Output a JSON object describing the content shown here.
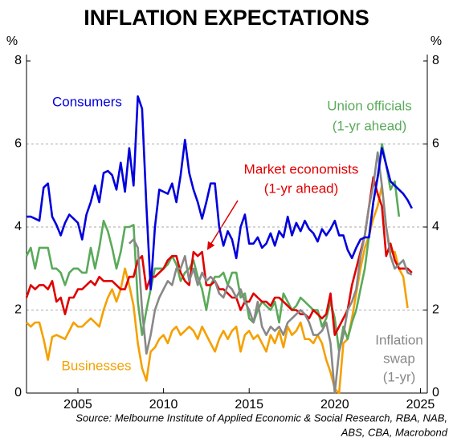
{
  "chart_data": {
    "type": "line",
    "title": "INFLATION EXPECTATIONS",
    "y_unit": "%",
    "y2_unit": "%",
    "source": [
      "Source: Melbourne Institute of Applied Economic & Social Research, RBA, NAB,",
      "ABS, CBA, Macrobond"
    ],
    "xlim": [
      2002,
      2025.4
    ],
    "xticks": [
      2005,
      2010,
      2015,
      2020,
      2025
    ],
    "ylim": [
      0,
      8
    ],
    "yticks": [
      0,
      2,
      4,
      6,
      8
    ],
    "y2lim": [
      0,
      8
    ],
    "y2ticks": [
      0,
      2,
      4,
      6,
      8
    ],
    "grid": true,
    "x": [
      2002,
      2002.25,
      2002.5,
      2002.75,
      2003,
      2003.25,
      2003.5,
      2003.75,
      2004,
      2004.25,
      2004.5,
      2004.75,
      2005,
      2005.25,
      2005.5,
      2005.75,
      2006,
      2006.25,
      2006.5,
      2006.75,
      2007,
      2007.25,
      2007.5,
      2007.75,
      2008,
      2008.25,
      2008.5,
      2008.75,
      2009,
      2009.25,
      2009.5,
      2009.75,
      2010,
      2010.25,
      2010.5,
      2010.75,
      2011,
      2011.25,
      2011.5,
      2011.75,
      2012,
      2012.25,
      2012.5,
      2012.75,
      2013,
      2013.25,
      2013.5,
      2013.75,
      2014,
      2014.25,
      2014.5,
      2014.75,
      2015,
      2015.25,
      2015.5,
      2015.75,
      2016,
      2016.25,
      2016.5,
      2016.75,
      2017,
      2017.25,
      2017.5,
      2017.75,
      2018,
      2018.25,
      2018.5,
      2018.75,
      2019,
      2019.25,
      2019.5,
      2019.75,
      2020,
      2020.25,
      2020.5,
      2020.75,
      2021,
      2021.25,
      2021.5,
      2021.75,
      2022,
      2022.25,
      2022.5,
      2022.75,
      2023,
      2023.25,
      2023.5,
      2023.75,
      2024,
      2024.25,
      2024.5
    ],
    "series": [
      {
        "name": [
          "Businesses"
        ],
        "color": "#f5a000",
        "values": [
          1.7,
          1.6,
          1.7,
          1.7,
          1.3,
          0.8,
          1.35,
          1.4,
          1.35,
          1.3,
          1.5,
          1.7,
          1.6,
          1.6,
          1.7,
          1.8,
          1.7,
          1.6,
          2.0,
          2.3,
          2.5,
          2.2,
          2.5,
          3.0,
          2.6,
          2.1,
          1.2,
          0.6,
          0.3,
          1.0,
          1.1,
          1.3,
          1.4,
          1.2,
          1.5,
          1.6,
          1.4,
          1.5,
          1.6,
          1.5,
          1.3,
          1.6,
          1.4,
          1.2,
          1.0,
          1.3,
          1.5,
          1.3,
          1.5,
          1.6,
          1.0,
          1.4,
          1.5,
          1.3,
          1.4,
          1.2,
          1.0,
          1.4,
          1.2,
          1.5,
          1.1,
          1.6,
          1.4,
          1.5,
          1.7,
          1.3,
          1.3,
          1.2,
          1.4,
          1.2,
          0.8,
          0.5,
          0.1,
          0.0,
          1.2,
          1.3,
          1.8,
          2.4,
          3.0,
          3.5,
          3.8,
          4.2,
          4.5,
          5.0,
          4.0,
          3.4,
          3.4,
          3.0,
          2.8,
          2.05,
          null
        ]
      },
      {
        "name": [
          "Union officials",
          "(1-yr ahead)"
        ],
        "color": "#5aaa5a",
        "values": [
          3.3,
          3.5,
          3.0,
          3.5,
          3.5,
          3.5,
          3.0,
          3.0,
          2.9,
          2.6,
          2.9,
          3.0,
          3.0,
          2.9,
          2.9,
          3.5,
          3.0,
          3.5,
          4.15,
          3.9,
          3.5,
          3.0,
          3.4,
          4.0,
          4.0,
          4.05,
          2.2,
          1.4,
          2.0,
          2.5,
          3.0,
          3.0,
          3.0,
          3.1,
          3.3,
          3.1,
          2.7,
          2.9,
          3.0,
          3.2,
          2.8,
          2.5,
          2.0,
          2.6,
          2.8,
          2.8,
          2.9,
          2.6,
          2.9,
          2.9,
          2.3,
          2.4,
          1.8,
          1.7,
          2.0,
          2.2,
          2.1,
          2.0,
          2.2,
          1.7,
          2.4,
          2.2,
          2.0,
          2.1,
          2.3,
          2.2,
          2.1,
          2.0,
          2.0,
          1.6,
          1.8,
          2.2,
          1.8,
          1.0,
          1.6,
          1.3,
          1.7,
          2.0,
          2.5,
          3.0,
          3.8,
          4.6,
          5.2,
          6.0,
          5.5,
          4.9,
          5.1,
          4.25,
          null,
          null,
          null
        ]
      },
      {
        "name": [
          "Market economists",
          "(1-yr ahead)"
        ],
        "color": "#e00000",
        "values": [
          2.3,
          2.6,
          2.5,
          2.6,
          2.6,
          2.5,
          2.7,
          2.2,
          2.3,
          1.9,
          2.3,
          2.3,
          2.5,
          2.5,
          2.6,
          2.7,
          2.6,
          2.8,
          2.7,
          2.7,
          2.7,
          2.6,
          2.5,
          2.5,
          2.8,
          2.8,
          3.2,
          3.3,
          2.5,
          2.8,
          2.8,
          2.9,
          3.0,
          3.2,
          3.3,
          3.3,
          2.9,
          2.7,
          2.6,
          3.4,
          3.3,
          3.4,
          2.6,
          2.6,
          2.7,
          2.5,
          2.5,
          2.4,
          2.3,
          2.3,
          2.0,
          2.2,
          2.2,
          2.4,
          2.3,
          2.2,
          2.2,
          2.1,
          2.3,
          2.3,
          2.2,
          2.1,
          2.0,
          2.0,
          1.9,
          1.9,
          1.8,
          2.0,
          1.9,
          1.8,
          1.9,
          2.4,
          1.4,
          1.6,
          1.8,
          2.0,
          2.6,
          3.0,
          3.4,
          3.8,
          4.5,
          5.2,
          4.8,
          4.5,
          3.3,
          3.6,
          3.2,
          3.0,
          3.0,
          3.0,
          2.9
        ]
      },
      {
        "name": [
          "Inflation",
          "swap",
          "(1-yr)"
        ],
        "color": "#888888",
        "values": [
          null,
          null,
          null,
          null,
          null,
          null,
          null,
          null,
          null,
          null,
          null,
          null,
          null,
          null,
          null,
          null,
          null,
          null,
          null,
          null,
          null,
          null,
          null,
          null,
          3.6,
          3.7,
          3.5,
          2.0,
          0.95,
          1.4,
          2.0,
          2.3,
          2.5,
          2.7,
          2.6,
          3.0,
          3.0,
          3.3,
          2.7,
          3.0,
          2.6,
          2.9,
          2.7,
          2.8,
          2.7,
          2.4,
          2.3,
          2.6,
          2.5,
          2.3,
          2.5,
          2.2,
          2.0,
          1.7,
          2.2,
          1.6,
          1.4,
          1.6,
          1.5,
          1.6,
          1.4,
          1.7,
          1.8,
          1.9,
          2.0,
          1.9,
          1.7,
          1.4,
          1.4,
          1.5,
          1.7,
          1.2,
          0.0,
          1.0,
          1.4,
          2.0,
          2.2,
          2.5,
          3.3,
          3.8,
          4.5,
          5.0,
          5.8,
          5.0,
          4.0,
          3.3,
          3.0,
          3.1,
          3.2,
          2.9,
          2.85
        ]
      },
      {
        "name": [
          "Consumers"
        ],
        "color": "#0000dd",
        "values": [
          4.25,
          4.25,
          4.2,
          4.15,
          4.95,
          5.05,
          4.25,
          4.05,
          3.8,
          4.1,
          4.3,
          4.2,
          4.1,
          3.7,
          4.3,
          4.6,
          5.0,
          4.6,
          5.3,
          5.35,
          5.25,
          4.9,
          5.55,
          4.85,
          5.9,
          5.0,
          7.15,
          6.85,
          4.5,
          2.5,
          4.0,
          4.9,
          4.85,
          4.8,
          5.05,
          4.6,
          5.25,
          6.1,
          5.3,
          4.9,
          4.6,
          4.2,
          4.6,
          5.05,
          5.05,
          4.0,
          3.55,
          3.9,
          3.7,
          3.25,
          4.0,
          4.3,
          3.6,
          3.6,
          3.75,
          3.5,
          3.6,
          3.85,
          3.55,
          3.9,
          3.75,
          4.25,
          3.8,
          4.1,
          3.9,
          4.15,
          3.95,
          3.85,
          3.65,
          3.95,
          3.8,
          3.95,
          4.15,
          3.8,
          3.8,
          3.45,
          3.25,
          3.5,
          3.7,
          3.75,
          3.75,
          4.6,
          5.2,
          5.9,
          5.5,
          5.1,
          5.0,
          4.9,
          4.8,
          4.65,
          4.45
        ]
      }
    ]
  }
}
